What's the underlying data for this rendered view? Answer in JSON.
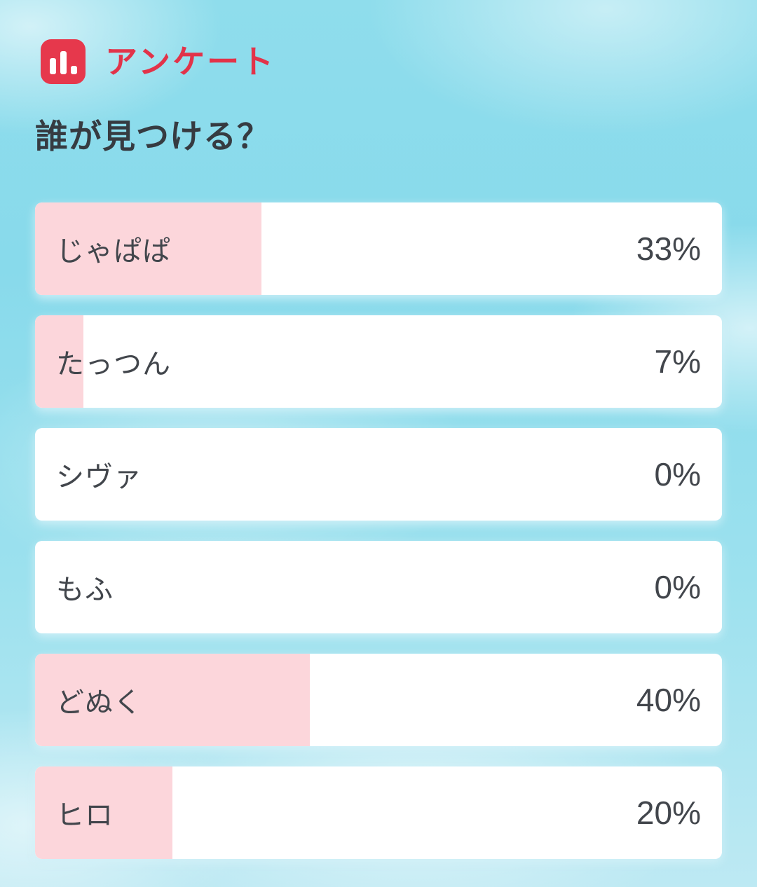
{
  "header": {
    "app_title": "アンケート",
    "icon": "bar-chart-icon"
  },
  "question": "誰が見つける？",
  "colors": {
    "accent_red": "#e23349",
    "icon_background": "#e6384c",
    "bar_fill_pink": "#fcd6db",
    "bar_background": "#ffffff",
    "text_dark": "#42464c",
    "sky_blue": "#8cdbec"
  },
  "chart_data": {
    "type": "bar",
    "orientation": "horizontal",
    "title": "誰が見つける？",
    "categories": [
      "じゃぱぱ",
      "たっつん",
      "シヴァ",
      "もふ",
      "どぬく",
      "ヒロ"
    ],
    "values": [
      33,
      7,
      0,
      0,
      40,
      20
    ],
    "unit": "%",
    "xlim": [
      0,
      100
    ],
    "grid": false,
    "legend": false
  },
  "options": [
    {
      "label": "じゃぱぱ",
      "value": 33,
      "percent": "33%"
    },
    {
      "label": "たっつん",
      "value": 7,
      "percent": "7%"
    },
    {
      "label": "シヴァ",
      "value": 0,
      "percent": "0%"
    },
    {
      "label": "もふ",
      "value": 0,
      "percent": "0%"
    },
    {
      "label": "どぬく",
      "value": 40,
      "percent": "40%"
    },
    {
      "label": "ヒロ",
      "value": 20,
      "percent": "20%"
    }
  ]
}
